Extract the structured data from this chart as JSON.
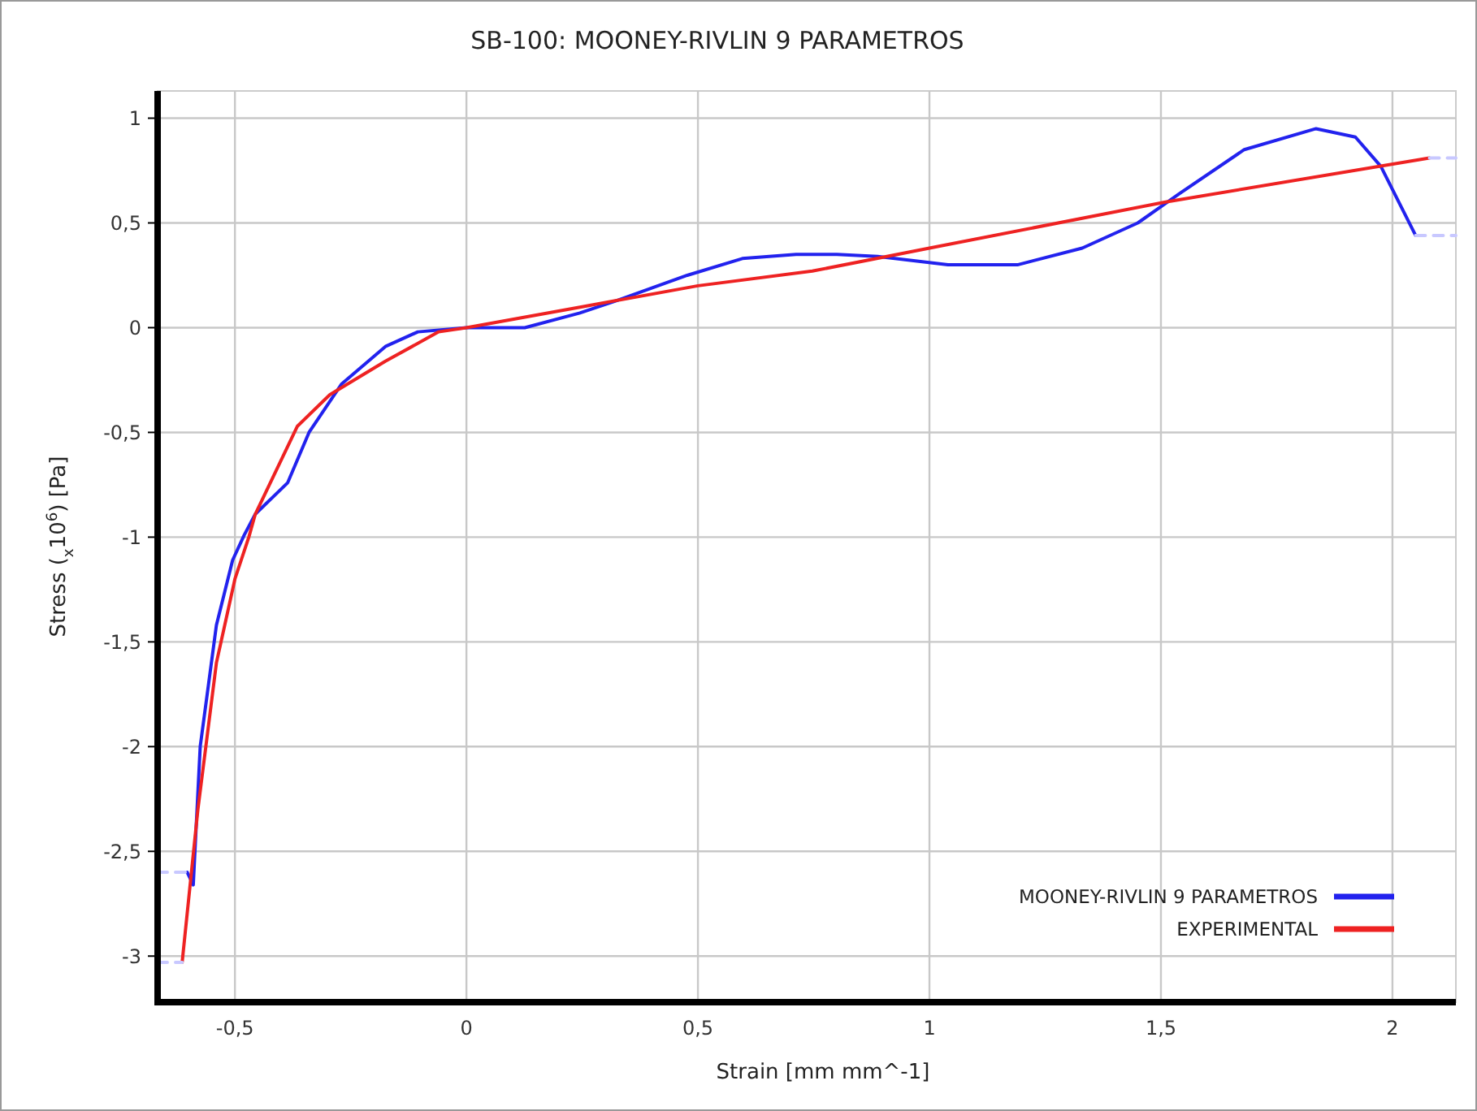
{
  "chart_data": {
    "type": "line",
    "title": "SB-100: MOONEY-RIVLIN 9 PARAMETROS",
    "xlabel": "Strain  [mm mm^-1]",
    "ylabel": "Stress  ($_{x}$10$^{6}$)  [Pa]",
    "xlim": [
      -0.667,
      2.137
    ],
    "ylim": [
      -3.22,
      1.13
    ],
    "xticks": [
      {
        "value": -0.5,
        "label": "-0,5"
      },
      0,
      {
        "value": 0.5,
        "label": "0,5"
      },
      1,
      {
        "value": 1.5,
        "label": "1,5"
      },
      2
    ],
    "yticks": [
      {
        "value": -3,
        "label": "-3"
      },
      {
        "value": -2.5,
        "label": "-2,5"
      },
      {
        "value": -2,
        "label": "-2"
      },
      {
        "value": -1.5,
        "label": "-1,5"
      },
      {
        "value": -1,
        "label": "-1"
      },
      {
        "value": -0.5,
        "label": "-0,5"
      },
      0,
      {
        "value": 0.5,
        "label": "0,5"
      },
      1
    ],
    "grid": true,
    "legend": "bottom right",
    "line_style": "solid",
    "marker": "none",
    "series": [
      {
        "name": "MOONEY-RIVLIN 9 PARAMETROS",
        "color": "#2222ee",
        "x": [
          -0.603,
          -0.59,
          -0.575,
          -0.54,
          -0.505,
          -0.48,
          -0.456,
          -0.386,
          -0.34,
          -0.27,
          -0.175,
          -0.105,
          0,
          0.126,
          0.245,
          0.326,
          0.477,
          0.596,
          0.712,
          0.8,
          0.888,
          1.04,
          1.19,
          1.33,
          1.45,
          1.54,
          1.68,
          1.835,
          1.92,
          1.975,
          2.05
        ],
        "values": [
          -2.6,
          -2.66,
          -2.0,
          -1.42,
          -1.11,
          -0.99,
          -0.89,
          -0.74,
          -0.5,
          -0.27,
          -0.09,
          -0.02,
          0,
          0,
          0.07,
          0.13,
          0.25,
          0.33,
          0.35,
          0.35,
          0.34,
          0.3,
          0.3,
          0.38,
          0.5,
          0.64,
          0.85,
          0.95,
          0.91,
          0.77,
          0.44
        ]
      },
      {
        "name": "EXPERIMENTAL",
        "color": "#ee2222",
        "x": [
          -0.614,
          -0.58,
          -0.54,
          -0.5,
          -0.47,
          -0.456,
          -0.365,
          -0.295,
          -0.175,
          -0.06,
          0,
          0.25,
          0.5,
          0.747,
          1,
          1.51,
          2.08
        ],
        "values": [
          -3.03,
          -2.3,
          -1.6,
          -1.2,
          -1.0,
          -0.89,
          -0.47,
          -0.32,
          -0.16,
          -0.02,
          0,
          0.1,
          0.2,
          0.27,
          0.38,
          0.6,
          0.81
        ]
      },
      {
        "color": "#c8c8ff",
        "line_style": "dashed",
        "x": [
          -0.667,
          -0.603,
          null,
          2.05,
          2.137
        ],
        "values": [
          -2.6,
          -2.6,
          null,
          0.44,
          0.44
        ]
      },
      {
        "color": "#c8c8ff",
        "line_style": "dashed",
        "x": [
          -0.667,
          -0.614,
          null,
          2.08,
          2.137
        ],
        "values": [
          -3.03,
          -3.03,
          null,
          0.81,
          0.81
        ]
      }
    ]
  }
}
